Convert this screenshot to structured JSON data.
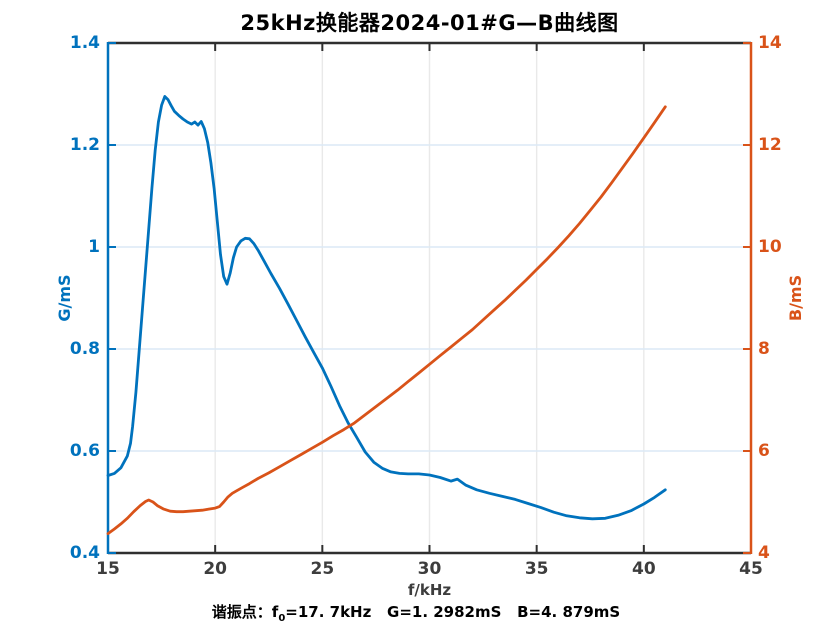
{
  "colors": {
    "left_accent": "#0072BD",
    "right_accent": "#D95319",
    "axis_dark": "#2f2f2f",
    "x_tick_text": "#3d3d3d",
    "grid_horizontal": "#dce9f5",
    "grid_vertical": "#e9e9e9",
    "background": "#ffffff"
  },
  "chart_data": {
    "type": "line",
    "title": "25kHz换能器2024-01#G—B曲线图",
    "xlabel": "f/kHz",
    "xlim": [
      15,
      45
    ],
    "x_ticks": [
      "15",
      "20",
      "25",
      "30",
      "35",
      "40",
      "45"
    ],
    "grid": true,
    "legend": "none",
    "left_axis": {
      "label": "G/mS",
      "color": "#0072BD",
      "lim": [
        0.4,
        1.4
      ],
      "ticks": [
        "0.4",
        "0.6",
        "0.8",
        "1",
        "1.2",
        "1.4"
      ]
    },
    "right_axis": {
      "label": "B/mS",
      "color": "#D95319",
      "lim": [
        4,
        14
      ],
      "ticks": [
        "4",
        "6",
        "8",
        "10",
        "12",
        "14"
      ]
    },
    "series": [
      {
        "name": "G",
        "axis": "left",
        "color": "#0072BD",
        "points": [
          [
            15.0,
            0.552
          ],
          [
            15.3,
            0.556
          ],
          [
            15.6,
            0.567
          ],
          [
            15.9,
            0.59
          ],
          [
            16.05,
            0.615
          ],
          [
            16.15,
            0.648
          ],
          [
            16.3,
            0.715
          ],
          [
            16.45,
            0.795
          ],
          [
            16.6,
            0.875
          ],
          [
            16.75,
            0.955
          ],
          [
            16.9,
            1.035
          ],
          [
            17.05,
            1.115
          ],
          [
            17.2,
            1.19
          ],
          [
            17.35,
            1.245
          ],
          [
            17.5,
            1.278
          ],
          [
            17.65,
            1.295
          ],
          [
            17.8,
            1.289
          ],
          [
            17.95,
            1.277
          ],
          [
            18.1,
            1.266
          ],
          [
            18.3,
            1.258
          ],
          [
            18.5,
            1.251
          ],
          [
            18.7,
            1.245
          ],
          [
            18.9,
            1.241
          ],
          [
            19.05,
            1.245
          ],
          [
            19.2,
            1.239
          ],
          [
            19.35,
            1.246
          ],
          [
            19.5,
            1.232
          ],
          [
            19.65,
            1.205
          ],
          [
            19.8,
            1.165
          ],
          [
            19.95,
            1.115
          ],
          [
            20.1,
            1.05
          ],
          [
            20.25,
            0.985
          ],
          [
            20.4,
            0.942
          ],
          [
            20.55,
            0.927
          ],
          [
            20.7,
            0.949
          ],
          [
            20.85,
            0.979
          ],
          [
            21.0,
            1.0
          ],
          [
            21.2,
            1.012
          ],
          [
            21.4,
            1.017
          ],
          [
            21.6,
            1.016
          ],
          [
            21.8,
            1.007
          ],
          [
            22.0,
            0.994
          ],
          [
            22.3,
            0.971
          ],
          [
            22.6,
            0.948
          ],
          [
            23.0,
            0.919
          ],
          [
            23.4,
            0.888
          ],
          [
            23.8,
            0.856
          ],
          [
            24.2,
            0.824
          ],
          [
            24.6,
            0.793
          ],
          [
            25.0,
            0.763
          ],
          [
            25.4,
            0.727
          ],
          [
            25.8,
            0.689
          ],
          [
            26.2,
            0.655
          ],
          [
            26.6,
            0.627
          ],
          [
            27.0,
            0.598
          ],
          [
            27.4,
            0.578
          ],
          [
            27.8,
            0.566
          ],
          [
            28.2,
            0.559
          ],
          [
            28.6,
            0.556
          ],
          [
            29.0,
            0.555
          ],
          [
            29.5,
            0.555
          ],
          [
            30.0,
            0.553
          ],
          [
            30.5,
            0.548
          ],
          [
            31.0,
            0.541
          ],
          [
            31.3,
            0.545
          ],
          [
            31.7,
            0.533
          ],
          [
            32.2,
            0.524
          ],
          [
            32.8,
            0.517
          ],
          [
            33.4,
            0.511
          ],
          [
            34.0,
            0.505
          ],
          [
            34.6,
            0.497
          ],
          [
            35.2,
            0.489
          ],
          [
            35.8,
            0.48
          ],
          [
            36.4,
            0.473
          ],
          [
            37.0,
            0.469
          ],
          [
            37.6,
            0.467
          ],
          [
            38.2,
            0.468
          ],
          [
            38.8,
            0.474
          ],
          [
            39.4,
            0.483
          ],
          [
            40.0,
            0.496
          ],
          [
            40.5,
            0.509
          ],
          [
            41.0,
            0.524
          ]
        ]
      },
      {
        "name": "B",
        "axis": "right",
        "color": "#D95319",
        "points": [
          [
            15.0,
            4.38
          ],
          [
            15.3,
            4.47
          ],
          [
            15.6,
            4.57
          ],
          [
            15.9,
            4.68
          ],
          [
            16.2,
            4.81
          ],
          [
            16.5,
            4.93
          ],
          [
            16.75,
            5.01
          ],
          [
            16.9,
            5.04
          ],
          [
            17.1,
            5.0
          ],
          [
            17.3,
            4.93
          ],
          [
            17.6,
            4.86
          ],
          [
            17.9,
            4.82
          ],
          [
            18.2,
            4.81
          ],
          [
            18.5,
            4.81
          ],
          [
            18.8,
            4.82
          ],
          [
            19.1,
            4.83
          ],
          [
            19.4,
            4.84
          ],
          [
            19.7,
            4.86
          ],
          [
            20.0,
            4.88
          ],
          [
            20.2,
            4.91
          ],
          [
            20.4,
            5.0
          ],
          [
            20.6,
            5.1
          ],
          [
            20.8,
            5.17
          ],
          [
            21.0,
            5.22
          ],
          [
            21.3,
            5.29
          ],
          [
            21.6,
            5.36
          ],
          [
            22.0,
            5.46
          ],
          [
            22.5,
            5.57
          ],
          [
            23.0,
            5.69
          ],
          [
            23.5,
            5.81
          ],
          [
            24.0,
            5.93
          ],
          [
            24.5,
            6.05
          ],
          [
            25.0,
            6.17
          ],
          [
            25.5,
            6.3
          ],
          [
            26.0,
            6.42
          ],
          [
            26.5,
            6.55
          ],
          [
            27.0,
            6.71
          ],
          [
            27.5,
            6.87
          ],
          [
            28.0,
            7.03
          ],
          [
            28.5,
            7.19
          ],
          [
            29.0,
            7.36
          ],
          [
            29.5,
            7.53
          ],
          [
            30.0,
            7.7
          ],
          [
            30.5,
            7.87
          ],
          [
            31.0,
            8.04
          ],
          [
            31.5,
            8.21
          ],
          [
            32.0,
            8.38
          ],
          [
            32.5,
            8.57
          ],
          [
            33.0,
            8.76
          ],
          [
            33.5,
            8.95
          ],
          [
            34.0,
            9.15
          ],
          [
            34.5,
            9.35
          ],
          [
            35.0,
            9.56
          ],
          [
            35.5,
            9.77
          ],
          [
            36.0,
            9.99
          ],
          [
            36.5,
            10.22
          ],
          [
            37.0,
            10.46
          ],
          [
            37.5,
            10.72
          ],
          [
            38.0,
            10.98
          ],
          [
            38.5,
            11.26
          ],
          [
            39.0,
            11.55
          ],
          [
            39.5,
            11.84
          ],
          [
            40.0,
            12.14
          ],
          [
            40.5,
            12.44
          ],
          [
            41.0,
            12.75
          ]
        ]
      }
    ],
    "annotation": {
      "prefix": "谐振点：f",
      "subscript": "0",
      "text": "=17. 7kHz   G=1. 2982mS   B=4. 879mS"
    },
    "resonance": {
      "f0_kHz": 17.7,
      "G_mS": 1.2982,
      "B_mS": 4.879
    }
  }
}
